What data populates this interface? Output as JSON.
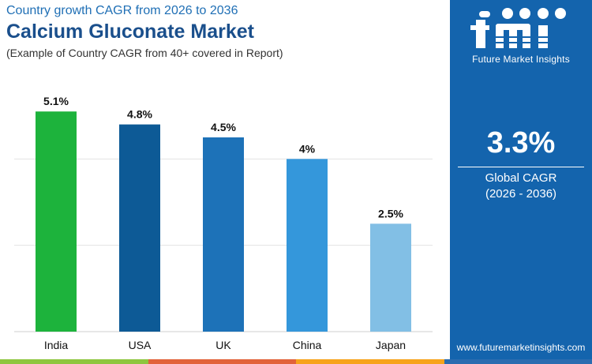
{
  "header": {
    "supertitle": "Country growth CAGR from 2026 to 2036",
    "title": "Calcium Gluconate Market",
    "subtitle": "(Example of Country CAGR from 40+ covered in Report)"
  },
  "chart_data": {
    "type": "bar",
    "categories": [
      "India",
      "USA",
      "UK",
      "China",
      "Japan"
    ],
    "values": [
      5.1,
      4.8,
      4.5,
      4.0,
      2.5
    ],
    "data_labels": [
      "5.1%",
      "4.8%",
      "4.5%",
      "4%",
      "2.5%"
    ],
    "colors": [
      "#1db33c",
      "#0d5a96",
      "#1d72b8",
      "#3497db",
      "#82bfe5"
    ],
    "ylim": [
      0,
      6
    ],
    "gridlines": [
      2,
      4
    ],
    "grid": true,
    "legend": "none"
  },
  "sidebar": {
    "brand_name": "Future Market Insights",
    "cagr_value": "3.3%",
    "cagr_label": "Global CAGR",
    "cagr_period": "(2026 - 2036)",
    "website": "www.futuremarketinsights.com",
    "background_color": "#1464ad"
  },
  "bottom_strip_colors": [
    "#8ec63f",
    "#e2623a",
    "#f7a31b",
    "#2b6cb0"
  ]
}
